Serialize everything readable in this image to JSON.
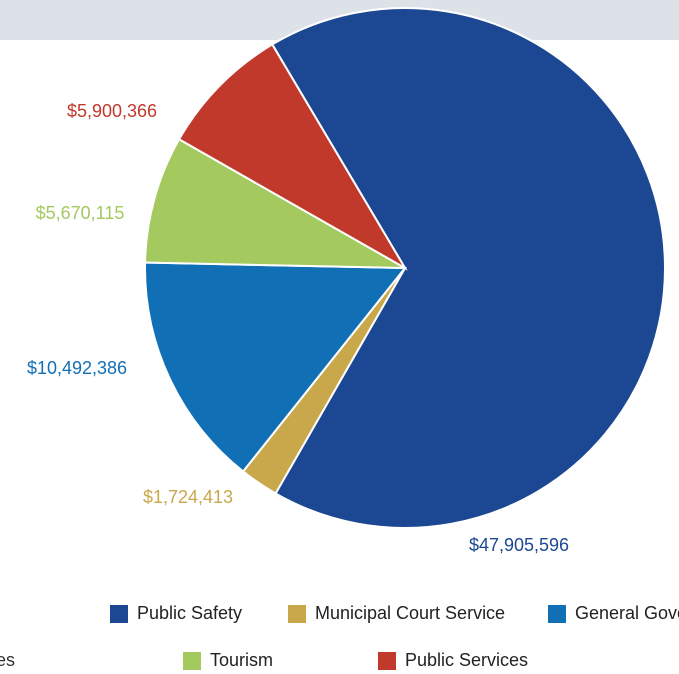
{
  "chart_data": {
    "type": "pie",
    "categories": [
      "Public Safety",
      "Municipal Court Service",
      "General Government",
      "Tourism",
      "Public Services"
    ],
    "values": [
      47905596,
      1724413,
      10492386,
      5670115,
      5900366
    ],
    "value_labels": [
      "$47,905,596",
      "$1,724,413",
      "$10,492,386",
      "$5,670,115",
      "$5,900,366"
    ],
    "colors": [
      "#1c4792",
      "#c9a84c",
      "#1170b5",
      "#a4c95f",
      "#c0392b"
    ],
    "legend_fragment": "es"
  }
}
